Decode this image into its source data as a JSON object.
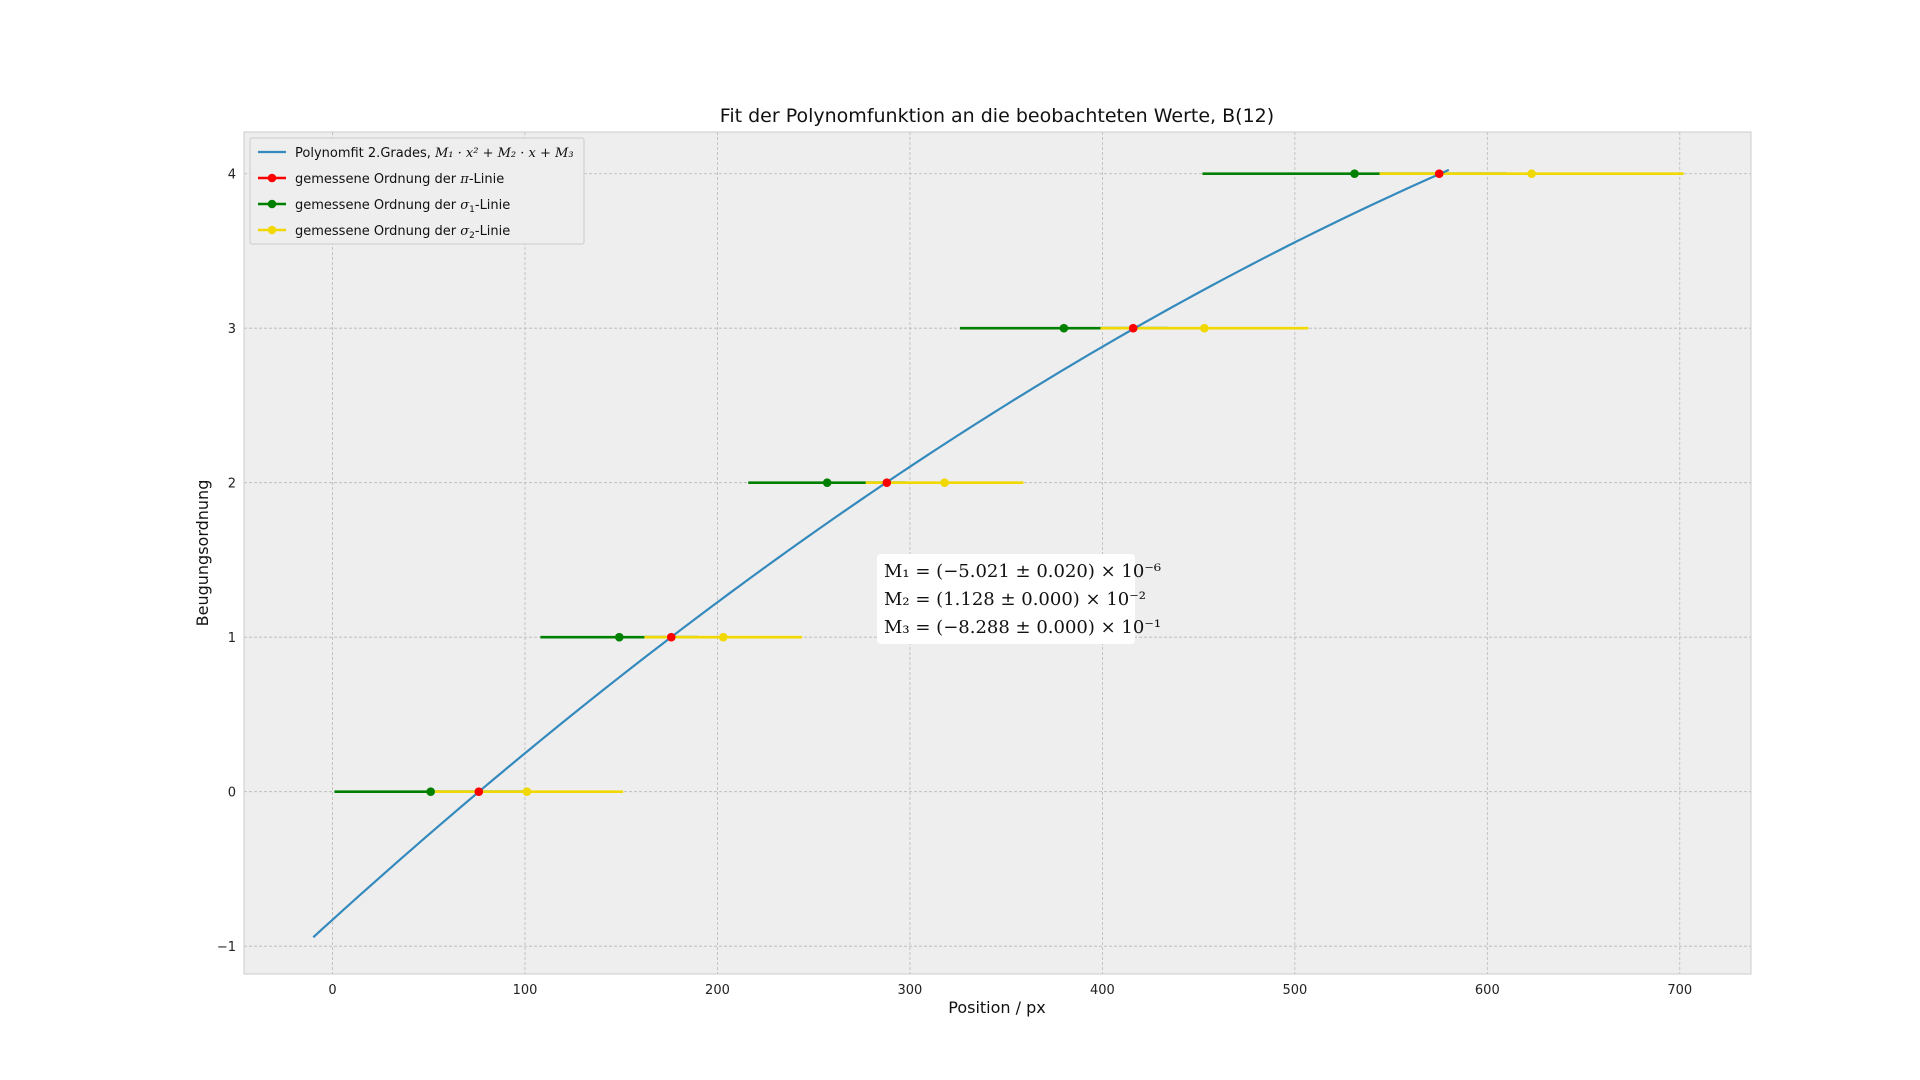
{
  "chart_data": {
    "type": "scatter",
    "title": "Fit der Polynomfunktion an die beobachteten Werte, B(12)",
    "xlabel": "Position / px",
    "ylabel": "Beugungsordnung",
    "xlim": [
      -46,
      737
    ],
    "ylim": [
      -1.18,
      4.27
    ],
    "xticks": [
      0,
      100,
      200,
      300,
      400,
      500,
      600,
      700
    ],
    "yticks": [
      -1,
      0,
      1,
      2,
      3,
      4
    ],
    "ytick_labels": [
      "−1",
      "0",
      "1",
      "2",
      "3",
      "4"
    ],
    "grid": true,
    "legend_position": "upper-left",
    "fit": {
      "name_text": "Polynomfit 2.Grades, ",
      "name_math": "M₁ · x² + M₂ · x + M₃",
      "color": "#348ABD",
      "coefficients": [
        -5.021e-06,
        0.01128,
        -0.8288
      ],
      "x_range": [
        -10,
        580
      ]
    },
    "series": [
      {
        "name_prefix": "gemessene Ordnung der ",
        "name_symbol": "π",
        "name_sub": "",
        "name_suffix": "-Linie",
        "color": "#ff0000",
        "points": [
          {
            "x": 76,
            "y": 0
          },
          {
            "x": 176,
            "y": 1
          },
          {
            "x": 288,
            "y": 2
          },
          {
            "x": 416,
            "y": 3
          },
          {
            "x": 575,
            "y": 4
          }
        ]
      },
      {
        "name_prefix": "gemessene Ordnung der ",
        "name_symbol": "σ",
        "name_sub": "1",
        "name_suffix": "-Linie",
        "color": "#008000",
        "points": [
          {
            "x": 51,
            "y": 0,
            "xerr": 50
          },
          {
            "x": 149,
            "y": 1,
            "xerr": 41
          },
          {
            "x": 257,
            "y": 2,
            "xerr": 41
          },
          {
            "x": 380,
            "y": 3,
            "xerr": 54
          },
          {
            "x": 531,
            "y": 4,
            "xerr": 79
          }
        ]
      },
      {
        "name_prefix": "gemessene Ordnung der ",
        "name_symbol": "σ",
        "name_sub": "2",
        "name_suffix": "-Linie",
        "color": "#f0d800",
        "points": [
          {
            "x": 101,
            "y": 0,
            "xerr": 50
          },
          {
            "x": 203,
            "y": 1,
            "xerr": 41
          },
          {
            "x": 318,
            "y": 2,
            "xerr": 41
          },
          {
            "x": 453,
            "y": 3,
            "xerr": 54
          },
          {
            "x": 623,
            "y": 4,
            "xerr": 79
          }
        ]
      }
    ],
    "annotation": {
      "lines": [
        "M₁ = (−5.021 ± 0.020) × 10⁻⁶",
        "M₂ = (1.128 ± 0.000) × 10⁻²",
        "M₃ = (−8.288 ± 0.000) × 10⁻¹"
      ]
    }
  }
}
